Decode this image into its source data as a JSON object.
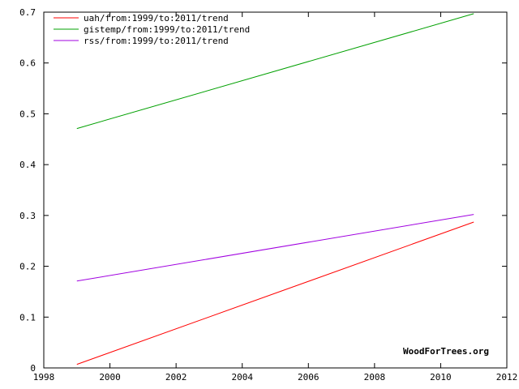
{
  "chart_data": {
    "type": "line",
    "title": "",
    "xlabel": "",
    "ylabel": "",
    "xlim": [
      1998,
      2012
    ],
    "ylim": [
      0,
      0.7
    ],
    "x_ticks": [
      "1998",
      "2000",
      "2002",
      "2004",
      "2006",
      "2008",
      "2010",
      "2012"
    ],
    "y_ticks": [
      "0",
      "0.1",
      "0.2",
      "0.3",
      "0.4",
      "0.5",
      "0.6",
      "0.7"
    ],
    "grid": false,
    "legend_position": "top-left",
    "series": [
      {
        "name": "uah/from:1999/to:2011/trend",
        "color": "#ff0000",
        "x": [
          1999,
          2011
        ],
        "y": [
          0.007,
          0.287
        ]
      },
      {
        "name": "gistemp/from:1999/to:2011/trend",
        "color": "#00a000",
        "x": [
          1999,
          2011
        ],
        "y": [
          0.471,
          0.697
        ]
      },
      {
        "name": "rss/from:1999/to:2011/trend",
        "color": "#a000e0",
        "x": [
          1999,
          2011
        ],
        "y": [
          0.171,
          0.302
        ]
      }
    ],
    "annotations": [
      "WoodForTrees.org"
    ]
  }
}
